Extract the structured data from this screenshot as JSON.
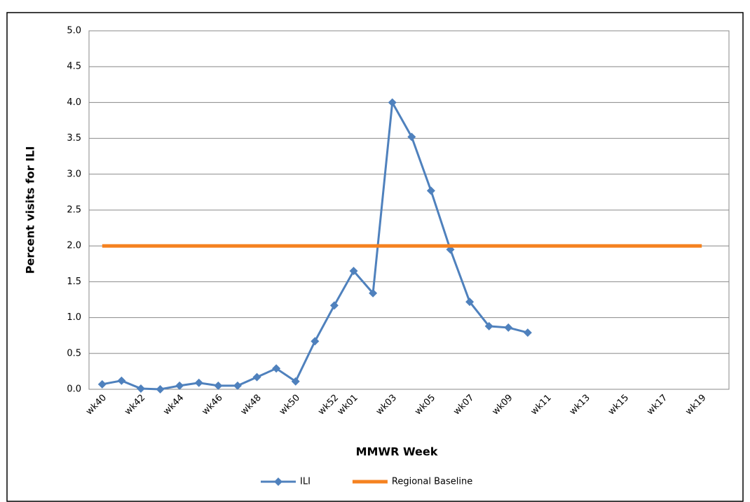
{
  "chart_data": {
    "type": "line",
    "y_label": "Percent visits for ILI",
    "x_label": "MMWR Week",
    "categories": [
      "wk40",
      null,
      "wk42",
      null,
      "wk44",
      null,
      "wk46",
      null,
      "wk48",
      null,
      "wk50",
      null,
      "wk52",
      "wk01",
      null,
      "wk03",
      null,
      "wk05",
      null,
      "wk07",
      null,
      "wk09",
      null,
      "wk11",
      null,
      "wk13",
      null,
      "wk15",
      null,
      "wk17",
      null,
      "wk19"
    ],
    "series": [
      {
        "name": "ILI",
        "color": "#4f81bd",
        "marker": "diamond",
        "values": [
          0.07,
          0.12,
          0.01,
          0.0,
          0.05,
          0.09,
          0.05,
          0.05,
          0.17,
          0.29,
          0.11,
          0.67,
          1.17,
          1.65,
          1.34,
          4.0,
          3.52,
          2.77,
          1.95,
          1.22,
          0.88,
          0.86,
          0.79,
          null,
          null,
          null,
          null,
          null,
          null,
          null,
          null,
          null
        ]
      },
      {
        "name": "Regional Baseline",
        "color": "#f58220",
        "marker": "none",
        "values": [
          2.0,
          2.0,
          2.0,
          2.0,
          2.0,
          2.0,
          2.0,
          2.0,
          2.0,
          2.0,
          2.0,
          2.0,
          2.0,
          2.0,
          2.0,
          2.0,
          2.0,
          2.0,
          2.0,
          2.0,
          2.0,
          2.0,
          2.0,
          2.0,
          2.0,
          2.0,
          2.0,
          2.0,
          2.0,
          2.0,
          2.0,
          2.0
        ]
      }
    ],
    "ylim": [
      0,
      5
    ],
    "yticks": [
      {
        "value": 0,
        "label": "0.0"
      },
      {
        "value": 0.5,
        "label": "0.5"
      },
      {
        "value": 1,
        "label": "1.0"
      },
      {
        "value": 1.5,
        "label": "1.5"
      },
      {
        "value": 2,
        "label": "2.0"
      },
      {
        "value": 2.5,
        "label": "2.5"
      },
      {
        "value": 3,
        "label": "3.0"
      },
      {
        "value": 3.5,
        "label": "3.5"
      },
      {
        "value": 4,
        "label": "4.0"
      },
      {
        "value": 4.5,
        "label": "4.5"
      },
      {
        "value": 5,
        "label": "5.0"
      }
    ],
    "grid": true,
    "legend": "bottom"
  }
}
